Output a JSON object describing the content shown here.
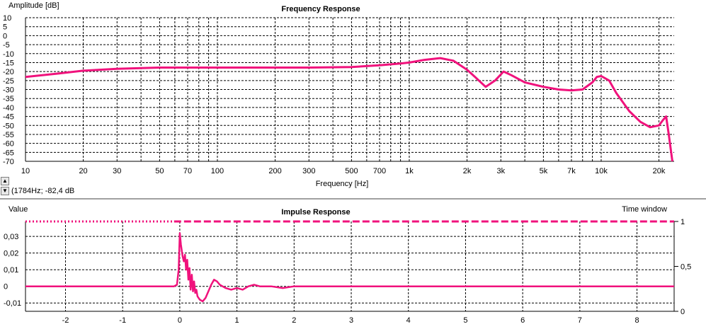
{
  "freq_panel": {
    "title": "Frequency Response",
    "ylabel": "Amplitude [dB]",
    "xlabel": "Frequency [Hz]",
    "readout": "(1784Hz; -82,4 dB"
  },
  "impulse_panel": {
    "title": "Impulse Response",
    "ylabel": "Value",
    "y2label": "Time window"
  },
  "colors": {
    "curve": "#f0127c",
    "grid": "#000000",
    "background": "#ffffff"
  },
  "chart_data": [
    {
      "type": "line",
      "title": "Frequency Response",
      "xlabel": "Frequency [Hz]",
      "ylabel": "Amplitude [dB]",
      "xscale": "log",
      "xlim": [
        10,
        24000
      ],
      "ylim": [
        -70,
        10
      ],
      "grid": true,
      "yticks": [
        10,
        5,
        0,
        -5,
        -10,
        -15,
        -20,
        -25,
        -30,
        -35,
        -40,
        -45,
        -50,
        -55,
        -60,
        -65,
        -70
      ],
      "ytick_labels": [
        "10",
        "5",
        "0",
        "-5",
        "-10",
        "-15",
        "-20",
        "-25",
        "-30",
        "-35",
        "-40",
        "-45",
        "-50",
        "-55",
        "-60",
        "-65",
        "-70"
      ],
      "xticks": [
        10,
        20,
        30,
        50,
        70,
        100,
        200,
        300,
        500,
        700,
        1000,
        2000,
        3000,
        5000,
        7000,
        10000,
        20000
      ],
      "xtick_labels": [
        "10",
        "20",
        "30",
        "50",
        "70",
        "100",
        "200",
        "300",
        "500",
        "700",
        "1k",
        "2k",
        "3k",
        "5k",
        "7k",
        "10k",
        "20k"
      ],
      "series": [
        {
          "x": [
            10,
            15,
            20,
            30,
            50,
            70,
            100,
            200,
            300,
            500,
            700,
            900,
            1000,
            1200,
            1450,
            1700,
            2000,
            2200,
            2500,
            2800,
            3100,
            3400,
            4000,
            5000,
            6000,
            7000,
            8000,
            9000,
            9500,
            10000,
            11000,
            12000,
            14000,
            16000,
            18000,
            20000,
            21000,
            21800,
            22500,
            23500
          ],
          "y": [
            -23,
            -21,
            -19.5,
            -18.5,
            -17.8,
            -17.8,
            -17.8,
            -17.8,
            -17.8,
            -17.5,
            -16.5,
            -15.5,
            -15,
            -13.5,
            -12.5,
            -14,
            -19,
            -23,
            -28.5,
            -25,
            -20,
            -22,
            -26,
            -28.5,
            -30,
            -30.5,
            -30,
            -26,
            -23,
            -22.5,
            -25,
            -32,
            -42,
            -48,
            -51,
            -50,
            -47,
            -45,
            -55,
            -70
          ]
        }
      ]
    },
    {
      "type": "line",
      "title": "Impulse Response",
      "ylabel": "Value",
      "y2label": "Time window",
      "xlim": [
        -2.7,
        8.65
      ],
      "ylim": [
        -0.015,
        0.039
      ],
      "grid": true,
      "xticks": [
        -2,
        -1,
        0,
        1,
        2,
        3,
        4,
        5,
        6,
        7,
        8
      ],
      "xtick_labels": [
        "-2",
        "-1",
        "0",
        "1",
        "2",
        "3",
        "4",
        "5",
        "6",
        "7",
        "8"
      ],
      "yticks": [
        0.03,
        0.02,
        0.01,
        0,
        -0.01
      ],
      "ytick_labels": [
        "0,03",
        "0,02",
        "0,01",
        "0",
        "-0,01"
      ],
      "y2ticks": [
        1,
        0.5,
        0
      ],
      "y2tick_labels": [
        "1",
        "0,5",
        "0"
      ],
      "y2lim": [
        0,
        1
      ],
      "series": [
        {
          "role": "impulse",
          "x": [
            -2.7,
            -0.1,
            -0.05,
            -0.02,
            0,
            0.02,
            0.05,
            0.07,
            0.09,
            0.11,
            0.13,
            0.15,
            0.17,
            0.19,
            0.21,
            0.23,
            0.25,
            0.27,
            0.29,
            0.31,
            0.33,
            0.35,
            0.4,
            0.45,
            0.5,
            0.55,
            0.6,
            0.65,
            0.7,
            0.8,
            0.9,
            1.0,
            1.1,
            1.2,
            1.3,
            1.4,
            1.6,
            1.8,
            2.0,
            2.2,
            2.5,
            3.0,
            3.5,
            8.65
          ],
          "y": [
            0,
            0,
            0.001,
            0.01,
            0.032,
            0.025,
            0.018,
            0.015,
            0.019,
            0.01,
            0.016,
            0.004,
            0.011,
            -0.002,
            0.007,
            -0.003,
            0.003,
            -0.004,
            -0.002,
            -0.006,
            -0.007,
            -0.008,
            -0.009,
            -0.007,
            -0.003,
            0.001,
            0.004,
            0.003,
            0.001,
            -0.001,
            -0.002,
            -0.001,
            -0.002,
            0.0,
            0.001,
            0.0,
            0.0,
            -0.001,
            0.0,
            0.0,
            0.0,
            0.0,
            0.0,
            0.0
          ]
        },
        {
          "role": "time-window",
          "axis": "right",
          "x": [
            -2.7,
            8.65
          ],
          "y": [
            1,
            1
          ]
        }
      ]
    }
  ]
}
